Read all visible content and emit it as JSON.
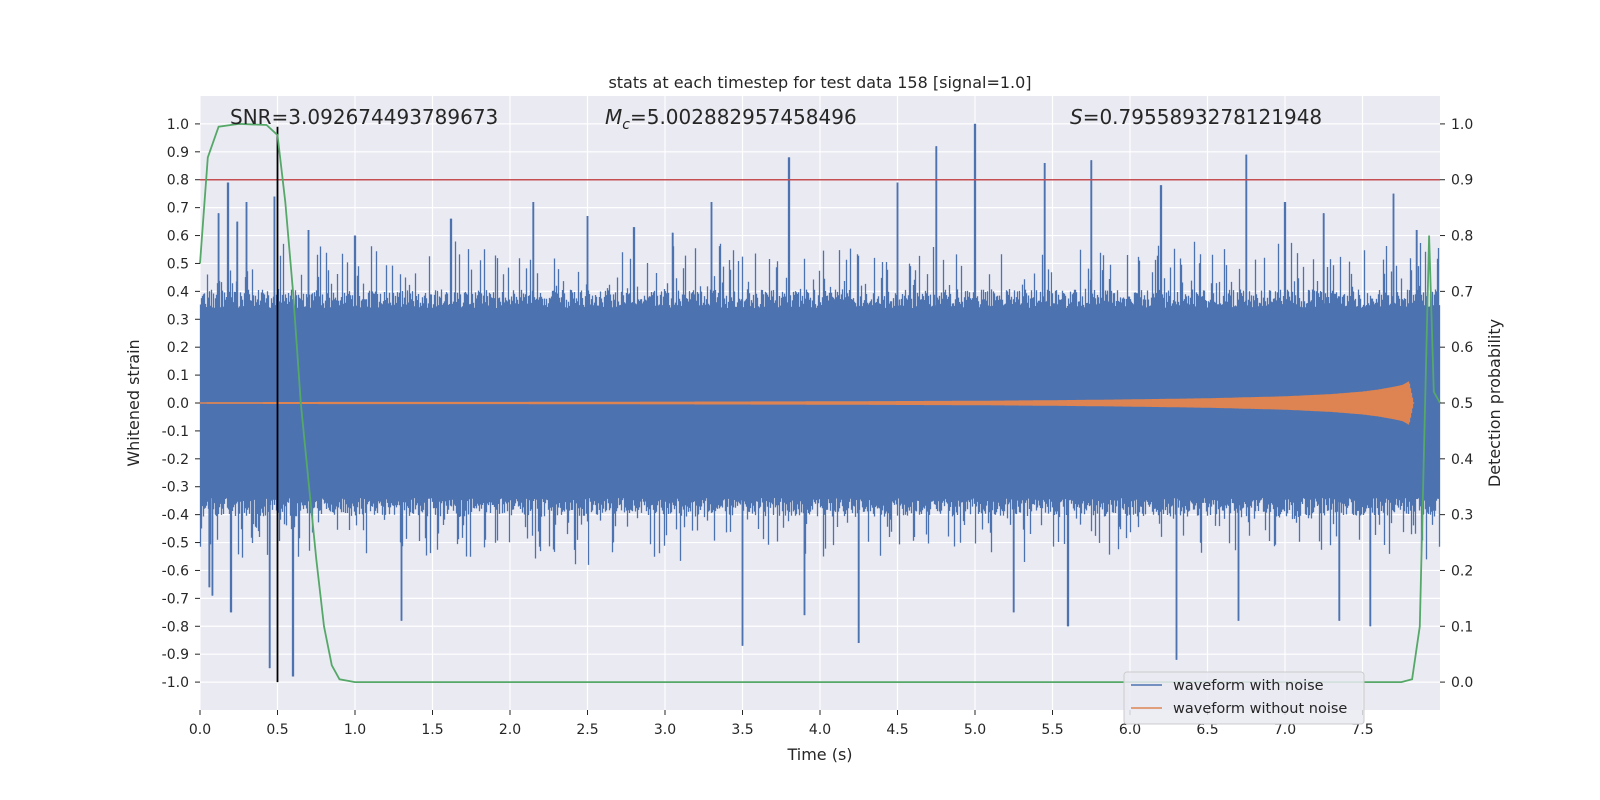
{
  "chart_data": {
    "type": "line",
    "title": "stats at each timestep for test data 158 [signal=1.0]",
    "xlabel": "Time (s)",
    "ylabel": "Whitened strain",
    "y2label": "Detection probability",
    "xlim": [
      0.0,
      8.0
    ],
    "ylim": [
      -1.1,
      1.1
    ],
    "y2lim": [
      -0.05,
      1.05
    ],
    "x_ticks": [
      "0.0",
      "0.5",
      "1.0",
      "1.5",
      "2.0",
      "2.5",
      "3.0",
      "3.5",
      "4.0",
      "4.5",
      "5.0",
      "5.5",
      "6.0",
      "6.5",
      "7.0",
      "7.5"
    ],
    "y_ticks": [
      "1.0",
      "0.9",
      "0.8",
      "0.7",
      "0.6",
      "0.5",
      "0.4",
      "0.3",
      "0.2",
      "0.1",
      "0.0",
      "-0.1",
      "-0.2",
      "-0.3",
      "-0.4",
      "-0.5",
      "-0.6",
      "-0.7",
      "-0.8",
      "-0.9",
      "-1.0"
    ],
    "y2_ticks": [
      "1.0",
      "0.9",
      "0.8",
      "0.7",
      "0.6",
      "0.5",
      "0.4",
      "0.3",
      "0.2",
      "0.1",
      "0.0"
    ],
    "annotations": {
      "snr": "SNR=3.092674493789673",
      "mc_symbol": "M",
      "mc_sub": "c",
      "mc_value": "=5.002882957458496",
      "s_symbol": "S",
      "s_value": "=0.7955893278121948"
    },
    "threshold_line": {
      "y2": 0.9,
      "color": "#c44e52"
    },
    "marker_line": {
      "x": 0.5,
      "color": "#000000"
    },
    "legend": {
      "position": "lower-right",
      "entries": [
        {
          "name": "waveform with noise",
          "color": "#4c72b0"
        },
        {
          "name": "waveform without noise",
          "color": "#dd8452"
        }
      ]
    },
    "series": [
      {
        "name": "waveform with noise",
        "color": "#4c72b0",
        "axis": "y",
        "envelope": {
          "upper_typical": 0.37,
          "lower_typical": -0.37,
          "peaks_upper": [
            [
              0.12,
              0.68
            ],
            [
              0.18,
              0.79
            ],
            [
              0.24,
              0.65
            ],
            [
              0.3,
              0.72
            ],
            [
              0.48,
              0.74
            ],
            [
              0.7,
              0.62
            ],
            [
              1.0,
              0.6
            ],
            [
              1.62,
              0.66
            ],
            [
              2.15,
              0.72
            ],
            [
              2.5,
              0.67
            ],
            [
              2.8,
              0.63
            ],
            [
              3.05,
              0.61
            ],
            [
              3.3,
              0.72
            ],
            [
              3.8,
              0.88
            ],
            [
              4.5,
              0.79
            ],
            [
              4.75,
              0.92
            ],
            [
              5.0,
              1.0
            ],
            [
              5.45,
              0.86
            ],
            [
              5.75,
              0.87
            ],
            [
              6.2,
              0.78
            ],
            [
              6.75,
              0.89
            ],
            [
              7.0,
              0.72
            ],
            [
              7.25,
              0.68
            ],
            [
              7.7,
              0.75
            ],
            [
              7.85,
              0.62
            ]
          ],
          "peaks_lower": [
            [
              0.06,
              -0.66
            ],
            [
              0.08,
              -0.69
            ],
            [
              0.2,
              -0.75
            ],
            [
              0.45,
              -0.95
            ],
            [
              0.6,
              -0.98
            ],
            [
              1.3,
              -0.78
            ],
            [
              3.5,
              -0.87
            ],
            [
              3.9,
              -0.76
            ],
            [
              4.25,
              -0.86
            ],
            [
              5.25,
              -0.75
            ],
            [
              5.6,
              -0.8
            ],
            [
              6.3,
              -0.92
            ],
            [
              6.7,
              -0.78
            ],
            [
              7.35,
              -0.78
            ],
            [
              7.55,
              -0.8
            ]
          ]
        }
      },
      {
        "name": "waveform without noise",
        "color": "#dd8452",
        "axis": "y",
        "amplitude": [
          [
            0.0,
            0.003
          ],
          [
            1.0,
            0.004
          ],
          [
            2.0,
            0.004
          ],
          [
            3.0,
            0.005
          ],
          [
            4.0,
            0.006
          ],
          [
            5.0,
            0.008
          ],
          [
            5.5,
            0.01
          ],
          [
            6.0,
            0.013
          ],
          [
            6.5,
            0.017
          ],
          [
            7.0,
            0.024
          ],
          [
            7.3,
            0.032
          ],
          [
            7.5,
            0.041
          ],
          [
            7.6,
            0.048
          ],
          [
            7.7,
            0.058
          ],
          [
            7.76,
            0.065
          ],
          [
            7.8,
            0.078
          ],
          [
            7.83,
            0.0
          ]
        ]
      },
      {
        "name": "detection probability",
        "color": "#55a868",
        "axis": "y2",
        "points": [
          [
            0.0,
            0.75
          ],
          [
            0.05,
            0.94
          ],
          [
            0.12,
            0.995
          ],
          [
            0.25,
            1.0
          ],
          [
            0.43,
            0.998
          ],
          [
            0.5,
            0.98
          ],
          [
            0.55,
            0.86
          ],
          [
            0.6,
            0.7
          ],
          [
            0.65,
            0.5
          ],
          [
            0.7,
            0.36
          ],
          [
            0.75,
            0.22
          ],
          [
            0.8,
            0.1
          ],
          [
            0.85,
            0.03
          ],
          [
            0.9,
            0.005
          ],
          [
            1.0,
            0.0
          ],
          [
            7.6,
            0.0
          ],
          [
            7.75,
            0.0
          ],
          [
            7.82,
            0.005
          ],
          [
            7.87,
            0.1
          ],
          [
            7.93,
            0.8
          ],
          [
            7.96,
            0.52
          ],
          [
            8.0,
            0.5
          ]
        ]
      }
    ]
  }
}
